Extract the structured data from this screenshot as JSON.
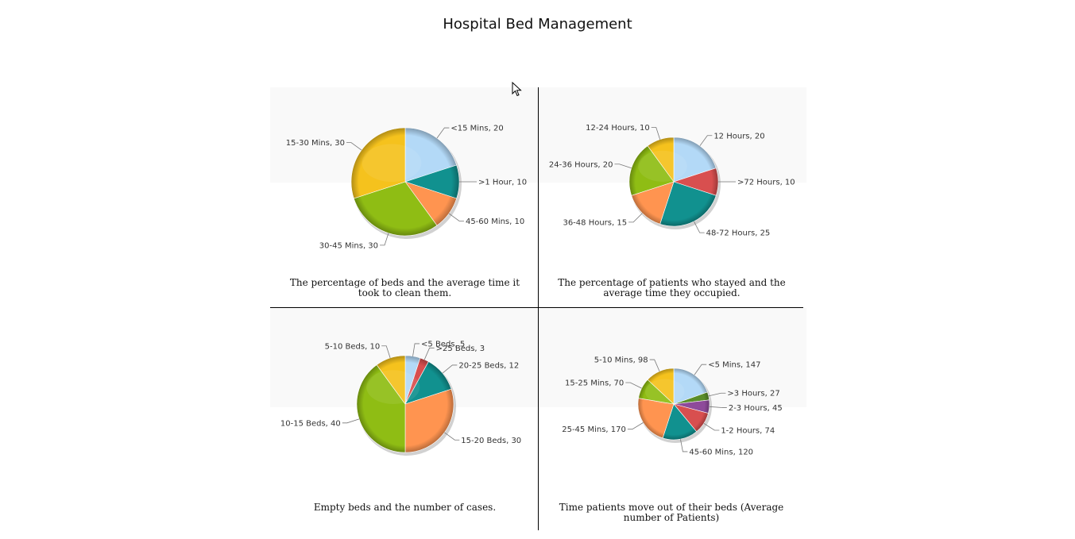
{
  "page": {
    "title": "Hospital Bed Management"
  },
  "colors": {
    "lightblue": "#b3d9f7",
    "teal": "#11918f",
    "orange": "#ff9450",
    "green": "#8fbd14",
    "yellow": "#f5c21d",
    "red": "#d84f4f",
    "purple": "#8e4a9a",
    "darkgreen": "#5a8d2a"
  },
  "chart_data": [
    {
      "type": "pie",
      "caption": "The percentage of beds and the average time it took to clean them.",
      "slices": [
        {
          "label": "<15 Mins",
          "value": 20,
          "color": "lightblue"
        },
        {
          "label": ">1 Hour",
          "value": 10,
          "color": "teal"
        },
        {
          "label": "45-60 Mins",
          "value": 10,
          "color": "orange"
        },
        {
          "label": "30-45 Mins",
          "value": 30,
          "color": "green"
        },
        {
          "label": "15-30 Mins",
          "value": 30,
          "color": "yellow"
        }
      ]
    },
    {
      "type": "pie",
      "caption": "The percentage of patients who stayed and the average time they occupied.",
      "slices": [
        {
          "label": "12 Hours",
          "value": 20,
          "color": "lightblue"
        },
        {
          "label": ">72 Hours",
          "value": 10,
          "color": "red"
        },
        {
          "label": "48-72 Hours",
          "value": 25,
          "color": "teal"
        },
        {
          "label": "36-48 Hours",
          "value": 15,
          "color": "orange"
        },
        {
          "label": "24-36 Hours",
          "value": 20,
          "color": "green"
        },
        {
          "label": "12-24 Hours",
          "value": 10,
          "color": "yellow"
        }
      ]
    },
    {
      "type": "pie",
      "caption": "Empty beds and the number of cases.",
      "slices": [
        {
          "label": "<5 Beds",
          "value": 5,
          "color": "lightblue"
        },
        {
          "label": ">25 Beds",
          "value": 3,
          "color": "red"
        },
        {
          "label": "20-25 Beds",
          "value": 12,
          "color": "teal"
        },
        {
          "label": "15-20 Beds",
          "value": 30,
          "color": "orange"
        },
        {
          "label": "10-15 Beds",
          "value": 40,
          "color": "green"
        },
        {
          "label": "5-10 Beds",
          "value": 10,
          "color": "yellow"
        }
      ]
    },
    {
      "type": "pie",
      "caption": "Time patients move out of their beds (Average number of Patients)",
      "slices": [
        {
          "label": "<5 Mins",
          "value": 147,
          "color": "lightblue"
        },
        {
          "label": ">3 Hours",
          "value": 27,
          "color": "darkgreen"
        },
        {
          "label": "2-3 Hours",
          "value": 45,
          "color": "purple"
        },
        {
          "label": "1-2 Hours",
          "value": 74,
          "color": "red"
        },
        {
          "label": "45-60 Mins",
          "value": 120,
          "color": "teal"
        },
        {
          "label": "25-45 Mins",
          "value": 170,
          "color": "orange"
        },
        {
          "label": "15-25 Mins",
          "value": 70,
          "color": "green"
        },
        {
          "label": "5-10 Mins",
          "value": 98,
          "color": "yellow"
        }
      ]
    }
  ]
}
